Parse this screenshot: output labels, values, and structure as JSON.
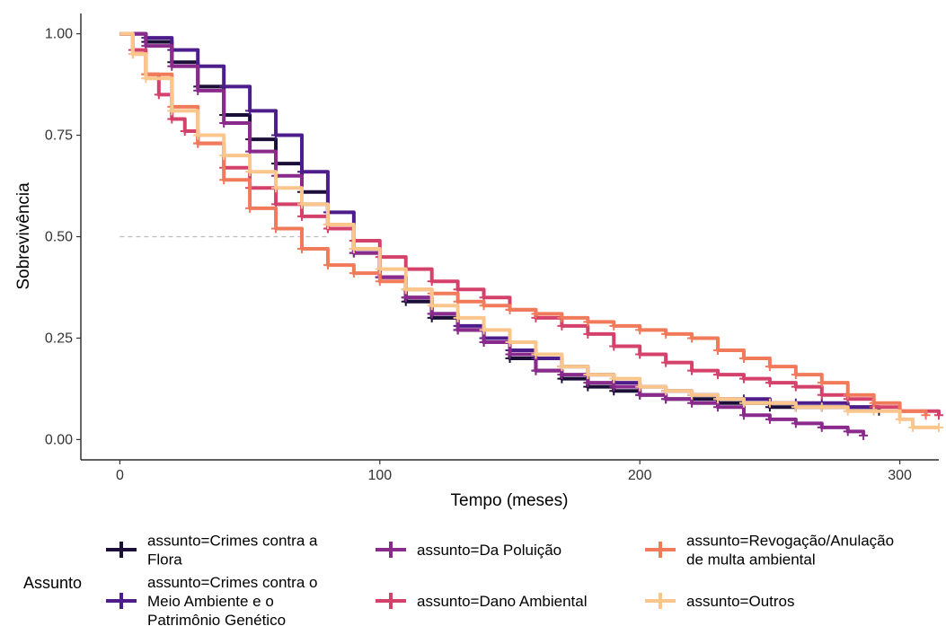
{
  "chart_data": {
    "type": "line",
    "title": "",
    "xlabel": "Tempo (meses)",
    "ylabel": "Sobrevivência",
    "xlim": [
      -15,
      315
    ],
    "ylim": [
      -0.05,
      1.05
    ],
    "x_ticks": [
      0,
      100,
      200,
      300
    ],
    "x_tick_labels": [
      "0",
      "100",
      "200",
      "300"
    ],
    "y_ticks": [
      0,
      0.25,
      0.5,
      0.75,
      1.0
    ],
    "y_tick_labels": [
      "0.00",
      "0.25",
      "0.50",
      "0.75",
      "1.00"
    ],
    "reference_line": {
      "y": 0.5,
      "x_range": [
        0,
        80
      ]
    },
    "grid": false,
    "legend_title": "Assunto",
    "legend_position": "bottom",
    "series": [
      {
        "name": "assunto=Crimes contra a Flora",
        "color": "#1b0f38",
        "points": [
          [
            0,
            1.0
          ],
          [
            10,
            0.98
          ],
          [
            20,
            0.93
          ],
          [
            30,
            0.87
          ],
          [
            40,
            0.8
          ],
          [
            50,
            0.74
          ],
          [
            60,
            0.68
          ],
          [
            70,
            0.61
          ],
          [
            80,
            0.53
          ],
          [
            90,
            0.46
          ],
          [
            100,
            0.4
          ],
          [
            110,
            0.34
          ],
          [
            120,
            0.3
          ],
          [
            130,
            0.27
          ],
          [
            140,
            0.24
          ],
          [
            150,
            0.2
          ],
          [
            160,
            0.17
          ],
          [
            170,
            0.15
          ],
          [
            180,
            0.13
          ],
          [
            190,
            0.12
          ],
          [
            200,
            0.11
          ],
          [
            210,
            0.1
          ],
          [
            220,
            0.1
          ],
          [
            230,
            0.09
          ],
          [
            240,
            0.09
          ],
          [
            250,
            0.08
          ],
          [
            260,
            0.08
          ],
          [
            270,
            0.08
          ],
          [
            280,
            0.08
          ],
          [
            290,
            0.08
          ],
          [
            292,
            0.07
          ]
        ]
      },
      {
        "name": "assunto=Crimes contra o Meio Ambiente e o Patrimônio Genético",
        "color": "#4d1d8c",
        "points": [
          [
            0,
            1.0
          ],
          [
            10,
            0.99
          ],
          [
            20,
            0.96
          ],
          [
            30,
            0.92
          ],
          [
            40,
            0.87
          ],
          [
            50,
            0.81
          ],
          [
            60,
            0.75
          ],
          [
            70,
            0.66
          ],
          [
            80,
            0.56
          ],
          [
            90,
            0.47
          ],
          [
            100,
            0.4
          ],
          [
            110,
            0.35
          ],
          [
            120,
            0.31
          ],
          [
            130,
            0.28
          ],
          [
            140,
            0.25
          ],
          [
            150,
            0.22
          ],
          [
            160,
            0.2
          ],
          [
            170,
            0.18
          ],
          [
            180,
            0.16
          ],
          [
            190,
            0.14
          ],
          [
            200,
            0.13
          ],
          [
            210,
            0.12
          ],
          [
            220,
            0.11
          ],
          [
            230,
            0.1
          ],
          [
            240,
            0.1
          ],
          [
            250,
            0.09
          ],
          [
            260,
            0.09
          ],
          [
            270,
            0.09
          ],
          [
            280,
            0.08
          ],
          [
            290,
            0.08
          ]
        ]
      },
      {
        "name": "assunto=Da Poluição",
        "color": "#8a2a8c",
        "points": [
          [
            0,
            1.0
          ],
          [
            10,
            0.97
          ],
          [
            20,
            0.92
          ],
          [
            30,
            0.86
          ],
          [
            40,
            0.78
          ],
          [
            50,
            0.71
          ],
          [
            60,
            0.65
          ],
          [
            70,
            0.58
          ],
          [
            80,
            0.52
          ],
          [
            90,
            0.46
          ],
          [
            100,
            0.4
          ],
          [
            110,
            0.35
          ],
          [
            120,
            0.31
          ],
          [
            130,
            0.27
          ],
          [
            140,
            0.24
          ],
          [
            150,
            0.21
          ],
          [
            160,
            0.17
          ],
          [
            170,
            0.16
          ],
          [
            180,
            0.14
          ],
          [
            190,
            0.13
          ],
          [
            200,
            0.11
          ],
          [
            210,
            0.1
          ],
          [
            220,
            0.09
          ],
          [
            230,
            0.08
          ],
          [
            240,
            0.06
          ],
          [
            250,
            0.05
          ],
          [
            260,
            0.04
          ],
          [
            270,
            0.03
          ],
          [
            280,
            0.02
          ],
          [
            286,
            0.01
          ]
        ]
      },
      {
        "name": "assunto=Dano Ambiental",
        "color": "#d4426b",
        "points": [
          [
            0,
            1.0
          ],
          [
            5,
            0.96
          ],
          [
            10,
            0.9
          ],
          [
            15,
            0.85
          ],
          [
            20,
            0.79
          ],
          [
            25,
            0.76
          ],
          [
            30,
            0.73
          ],
          [
            40,
            0.67
          ],
          [
            50,
            0.62
          ],
          [
            60,
            0.58
          ],
          [
            70,
            0.55
          ],
          [
            80,
            0.52
          ],
          [
            90,
            0.49
          ],
          [
            100,
            0.45
          ],
          [
            110,
            0.42
          ],
          [
            120,
            0.39
          ],
          [
            130,
            0.37
          ],
          [
            140,
            0.35
          ],
          [
            150,
            0.32
          ],
          [
            160,
            0.3
          ],
          [
            170,
            0.28
          ],
          [
            180,
            0.26
          ],
          [
            190,
            0.23
          ],
          [
            200,
            0.21
          ],
          [
            210,
            0.19
          ],
          [
            220,
            0.17
          ],
          [
            230,
            0.16
          ],
          [
            240,
            0.15
          ],
          [
            250,
            0.14
          ],
          [
            260,
            0.13
          ],
          [
            270,
            0.11
          ],
          [
            280,
            0.1
          ],
          [
            290,
            0.08
          ],
          [
            300,
            0.07
          ],
          [
            315,
            0.06
          ]
        ]
      },
      {
        "name": "assunto=Revogação/Anulação de multa ambiental",
        "color": "#f07a5a",
        "points": [
          [
            0,
            1.0
          ],
          [
            5,
            0.95
          ],
          [
            10,
            0.9
          ],
          [
            20,
            0.82
          ],
          [
            30,
            0.73
          ],
          [
            40,
            0.64
          ],
          [
            50,
            0.57
          ],
          [
            60,
            0.52
          ],
          [
            70,
            0.47
          ],
          [
            80,
            0.43
          ],
          [
            90,
            0.41
          ],
          [
            100,
            0.39
          ],
          [
            110,
            0.37
          ],
          [
            120,
            0.36
          ],
          [
            130,
            0.34
          ],
          [
            140,
            0.33
          ],
          [
            150,
            0.32
          ],
          [
            160,
            0.31
          ],
          [
            170,
            0.3
          ],
          [
            180,
            0.29
          ],
          [
            190,
            0.28
          ],
          [
            200,
            0.27
          ],
          [
            210,
            0.26
          ],
          [
            220,
            0.25
          ],
          [
            230,
            0.22
          ],
          [
            240,
            0.2
          ],
          [
            250,
            0.18
          ],
          [
            260,
            0.16
          ],
          [
            270,
            0.14
          ],
          [
            280,
            0.11
          ],
          [
            290,
            0.09
          ],
          [
            300,
            0.07
          ],
          [
            310,
            0.06
          ]
        ]
      },
      {
        "name": "assunto=Outros",
        "color": "#fbc68c",
        "points": [
          [
            0,
            1.0
          ],
          [
            5,
            0.95
          ],
          [
            10,
            0.89
          ],
          [
            20,
            0.81
          ],
          [
            30,
            0.75
          ],
          [
            40,
            0.7
          ],
          [
            50,
            0.66
          ],
          [
            60,
            0.62
          ],
          [
            70,
            0.58
          ],
          [
            80,
            0.53
          ],
          [
            90,
            0.47
          ],
          [
            100,
            0.42
          ],
          [
            110,
            0.37
          ],
          [
            120,
            0.33
          ],
          [
            130,
            0.3
          ],
          [
            140,
            0.27
          ],
          [
            150,
            0.24
          ],
          [
            160,
            0.21
          ],
          [
            170,
            0.18
          ],
          [
            180,
            0.16
          ],
          [
            190,
            0.15
          ],
          [
            200,
            0.13
          ],
          [
            210,
            0.12
          ],
          [
            220,
            0.11
          ],
          [
            230,
            0.1
          ],
          [
            240,
            0.09
          ],
          [
            250,
            0.09
          ],
          [
            260,
            0.08
          ],
          [
            270,
            0.08
          ],
          [
            280,
            0.07
          ],
          [
            290,
            0.07
          ],
          [
            300,
            0.05
          ],
          [
            305,
            0.03
          ],
          [
            315,
            0.03
          ]
        ]
      }
    ]
  },
  "legend_items": [
    {
      "lines": [
        "assunto=Crimes contra a",
        "Flora"
      ],
      "color": "#1b0f38"
    },
    {
      "lines": [
        "assunto=Crimes contra o",
        "Meio Ambiente e o",
        "Patrimônio Genético"
      ],
      "color": "#4d1d8c"
    },
    {
      "lines": [
        "assunto=Da Poluição"
      ],
      "color": "#8a2a8c"
    },
    {
      "lines": [
        "assunto=Dano Ambiental"
      ],
      "color": "#d4426b"
    },
    {
      "lines": [
        "assunto=Revogação/Anulação",
        "de multa ambiental"
      ],
      "color": "#f07a5a"
    },
    {
      "lines": [
        "assunto=Outros"
      ],
      "color": "#fbc68c"
    }
  ]
}
